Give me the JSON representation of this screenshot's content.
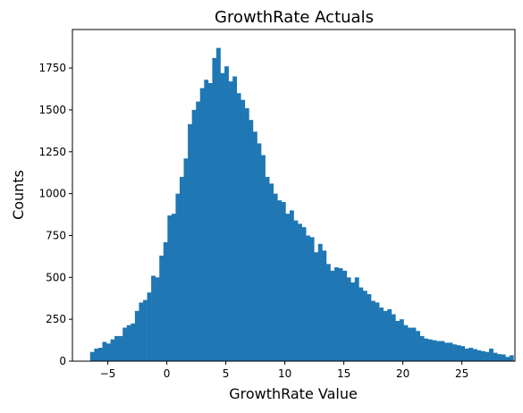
{
  "chart_data": {
    "type": "bar",
    "title": "GrowthRate Actuals",
    "xlabel": "GrowthRate Value",
    "ylabel": "Counts",
    "xlim": [
      -8.0,
      29.5
    ],
    "ylim": [
      0,
      1980
    ],
    "xticks": [
      -5,
      0,
      5,
      10,
      15,
      20,
      25
    ],
    "yticks": [
      0,
      250,
      500,
      750,
      1000,
      1250,
      1500,
      1750
    ],
    "grid": false,
    "color": "#1f77b4",
    "bins": {
      "start": -6.5,
      "width": 0.345,
      "counts": [
        55,
        75,
        80,
        115,
        105,
        130,
        150,
        150,
        200,
        215,
        225,
        300,
        350,
        365,
        410,
        510,
        500,
        630,
        710,
        870,
        880,
        1000,
        1100,
        1210,
        1415,
        1500,
        1550,
        1630,
        1680,
        1660,
        1810,
        1870,
        1720,
        1760,
        1670,
        1700,
        1600,
        1560,
        1510,
        1440,
        1370,
        1300,
        1230,
        1100,
        1060,
        1000,
        960,
        950,
        880,
        900,
        840,
        820,
        800,
        750,
        740,
        650,
        700,
        660,
        580,
        540,
        560,
        555,
        540,
        500,
        470,
        500,
        440,
        420,
        400,
        360,
        350,
        320,
        300,
        310,
        280,
        240,
        250,
        215,
        200,
        200,
        180,
        150,
        135,
        130,
        125,
        120,
        120,
        110,
        110,
        100,
        95,
        90,
        75,
        80,
        72,
        65,
        60,
        55,
        75,
        50,
        42,
        40,
        25,
        35
      ]
    }
  }
}
